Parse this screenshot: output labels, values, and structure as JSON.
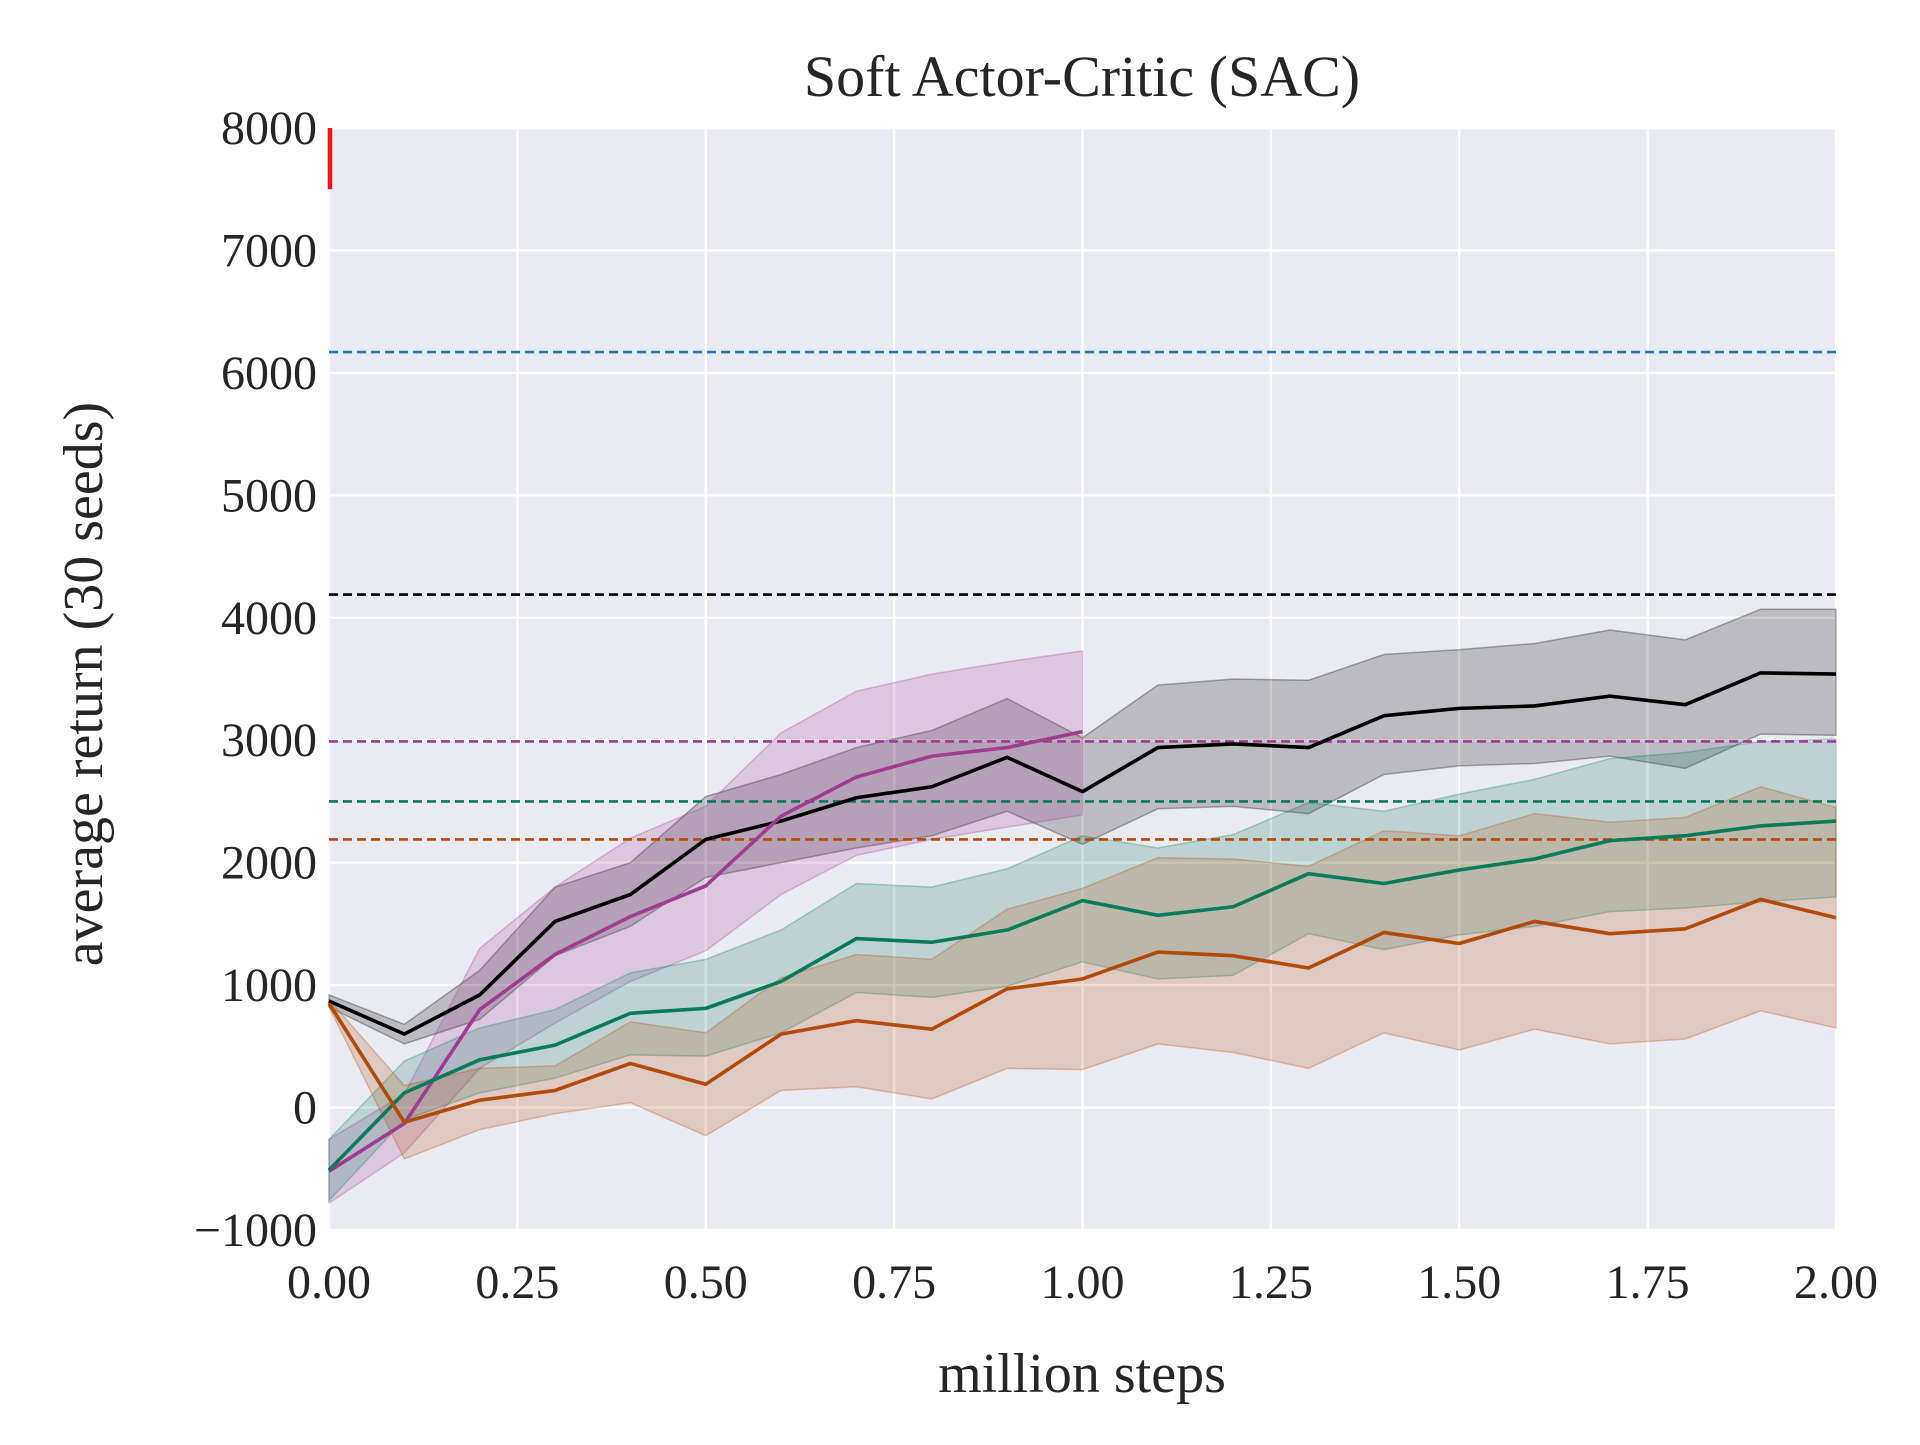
{
  "chart_data": {
    "type": "line",
    "title": "Soft Actor-Critic (SAC)",
    "xlabel": "million steps",
    "ylabel": "average return (30 seeds)",
    "xlim": [
      0,
      2.0
    ],
    "ylim": [
      -1000,
      8000
    ],
    "xticks": [
      0.0,
      0.25,
      0.5,
      0.75,
      1.0,
      1.25,
      1.5,
      1.75,
      2.0
    ],
    "xtick_labels": [
      "0.00",
      "0.25",
      "0.50",
      "0.75",
      "1.00",
      "1.25",
      "1.50",
      "1.75",
      "2.00"
    ],
    "yticks": [
      -1000,
      0,
      1000,
      2000,
      3000,
      4000,
      5000,
      6000,
      7000,
      8000
    ],
    "ytick_labels": [
      "−1000",
      "0",
      "1000",
      "2000",
      "3000",
      "4000",
      "5000",
      "6000",
      "7000",
      "8000"
    ],
    "grid": true,
    "background": "#eaeaf2",
    "series": [
      {
        "color": "#000000",
        "x": [
          0.0,
          0.1,
          0.2,
          0.3,
          0.4,
          0.5,
          0.6,
          0.7,
          0.8,
          0.9,
          1.0,
          1.1,
          1.2,
          1.3,
          1.4,
          1.5,
          1.6,
          1.7,
          1.8,
          1.9,
          2.0
        ],
        "y": [
          870,
          600,
          920,
          1520,
          1740,
          2190,
          2340,
          2530,
          2620,
          2860,
          2580,
          2940,
          2970,
          2940,
          3200,
          3260,
          3280,
          3360,
          3290,
          3550,
          3540
        ],
        "lower": [
          820,
          520,
          720,
          1240,
          1480,
          1880,
          2000,
          2120,
          2220,
          2420,
          2150,
          2440,
          2460,
          2400,
          2720,
          2790,
          2810,
          2870,
          2770,
          3050,
          3040
        ],
        "upper": [
          920,
          680,
          1120,
          1800,
          2000,
          2540,
          2720,
          2940,
          3080,
          3340,
          3020,
          3450,
          3500,
          3490,
          3700,
          3740,
          3790,
          3900,
          3820,
          4070,
          4070
        ]
      },
      {
        "color": "#a03c90",
        "x": [
          0.0,
          0.1,
          0.2,
          0.3,
          0.4,
          0.5,
          0.6,
          0.7,
          0.8,
          0.9,
          1.0
        ],
        "y": [
          -520,
          -130,
          800,
          1250,
          1560,
          1810,
          2380,
          2700,
          2870,
          2940,
          3070
        ],
        "lower": [
          -780,
          -370,
          320,
          690,
          1030,
          1280,
          1740,
          2060,
          2190,
          2290,
          2390
        ],
        "upper": [
          -260,
          110,
          1300,
          1800,
          2200,
          2460,
          3060,
          3400,
          3540,
          3640,
          3730
        ]
      },
      {
        "color": "#0a7a5a",
        "x": [
          0.0,
          0.1,
          0.2,
          0.3,
          0.4,
          0.5,
          0.6,
          0.7,
          0.8,
          0.9,
          1.0,
          1.1,
          1.2,
          1.3,
          1.4,
          1.5,
          1.6,
          1.7,
          1.8,
          1.9,
          2.0
        ],
        "y": [
          -510,
          120,
          390,
          510,
          770,
          810,
          1030,
          1380,
          1350,
          1450,
          1690,
          1570,
          1640,
          1910,
          1830,
          1940,
          2030,
          2180,
          2220,
          2300,
          2340
        ],
        "lower": [
          -760,
          -100,
          120,
          240,
          430,
          420,
          610,
          940,
          900,
          990,
          1190,
          1050,
          1080,
          1420,
          1290,
          1410,
          1480,
          1600,
          1630,
          1680,
          1720
        ],
        "upper": [
          -260,
          380,
          650,
          800,
          1100,
          1210,
          1450,
          1830,
          1800,
          1950,
          2220,
          2120,
          2230,
          2490,
          2420,
          2560,
          2680,
          2850,
          2900,
          2990,
          3010
        ]
      },
      {
        "color": "#b24a0a",
        "x": [
          0.0,
          0.1,
          0.2,
          0.3,
          0.4,
          0.5,
          0.6,
          0.7,
          0.8,
          0.9,
          1.0,
          1.1,
          1.2,
          1.3,
          1.4,
          1.5,
          1.6,
          1.7,
          1.8,
          1.9,
          2.0
        ],
        "y": [
          850,
          -120,
          60,
          140,
          360,
          190,
          600,
          710,
          640,
          970,
          1050,
          1270,
          1240,
          1140,
          1430,
          1340,
          1520,
          1420,
          1460,
          1700,
          1550
        ],
        "lower": [
          820,
          -420,
          -180,
          -50,
          40,
          -230,
          140,
          170,
          70,
          320,
          310,
          520,
          450,
          320,
          610,
          470,
          640,
          520,
          560,
          790,
          650
        ],
        "upper": [
          880,
          180,
          320,
          340,
          700,
          610,
          1060,
          1250,
          1210,
          1620,
          1790,
          2040,
          2030,
          1970,
          2260,
          2220,
          2400,
          2330,
          2370,
          2620,
          2450
        ]
      }
    ],
    "reference_lines": [
      {
        "y": 6170,
        "color": "#1f77b4",
        "style": "dashed"
      },
      {
        "y": 4190,
        "color": "#000000",
        "style": "dashed"
      },
      {
        "y": 2990,
        "color": "#a03c90",
        "style": "dashed"
      },
      {
        "y": 2500,
        "color": "#0a7a5a",
        "style": "dashed"
      },
      {
        "y": 2190,
        "color": "#b24a0a",
        "style": "dashed"
      }
    ],
    "marker": {
      "x": 0.0,
      "y_from": 7500,
      "y_to": 8000,
      "color": "#e8171b"
    }
  }
}
